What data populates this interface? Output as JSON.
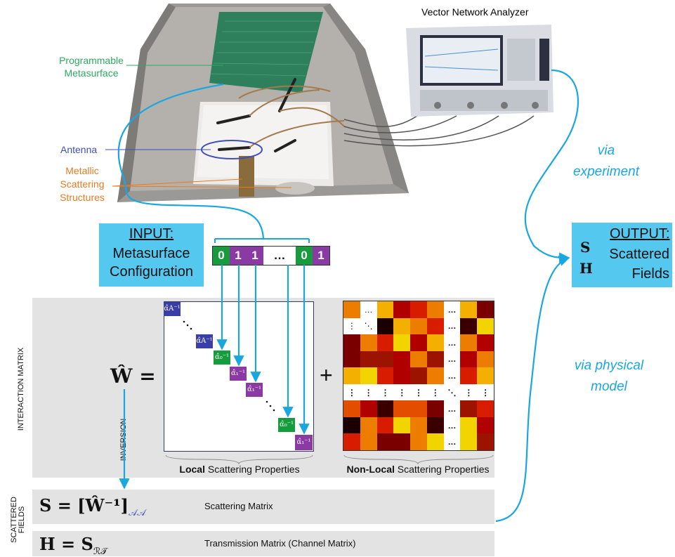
{
  "photo": {
    "vna_label": "Vector Network Analyzer",
    "metasurface_label": "Programmable Metasurface",
    "antenna_label": "Antenna",
    "scatter_label": "Metallic Scattering Structures",
    "colors": {
      "metasurface": "#2bab5e",
      "antenna": "#3f4fb8",
      "scatter": "#e77b22"
    }
  },
  "input_box": {
    "title": "INPUT:",
    "text": "Metasurface Configuration"
  },
  "bits": [
    "0",
    "1",
    "1",
    "…",
    "0",
    "1"
  ],
  "output_box": {
    "title": "OUTPUT:",
    "text": "Scattered Fields",
    "sym_s": "S",
    "sym_h": "H"
  },
  "via_experiment": "via experiment",
  "via_model": "via physical model",
  "interaction": {
    "side_label": "INTERACTION MATRIX",
    "equation": "Ŵ =",
    "plus": "+",
    "inversion": "INVERSION",
    "local_bold": "Local",
    "local_rest": " Scattering Properties",
    "nonlocal_bold": "Non-Local",
    "nonlocal_rest": " Scattering Properties",
    "diag_entries": [
      "α̂A⁻¹",
      "α̂A⁻¹",
      "α̂₀⁻¹",
      "α̂₁⁻¹",
      "α̂₁⁻¹",
      "α̂₀⁻¹",
      "α̂₁⁻¹"
    ]
  },
  "scattered": {
    "side_label_1": "SCATTERED",
    "side_label_2": "FIELDS",
    "eq1": "S = [Ŵ⁻¹]",
    "eq1_sub": "𝒜𝒜",
    "eq2": "H = S",
    "eq2_sub": "ℛ𝒯",
    "desc1": "Scattering Matrix",
    "desc2": "Transmission Matrix (Channel Matrix)"
  },
  "colors": {
    "accent": "#1aa7e0",
    "box": "#55c8ef",
    "green": "#169c3c",
    "purple": "#8b3aa3",
    "navy": "#3a3fa6",
    "grey": "#e3e3e3"
  }
}
